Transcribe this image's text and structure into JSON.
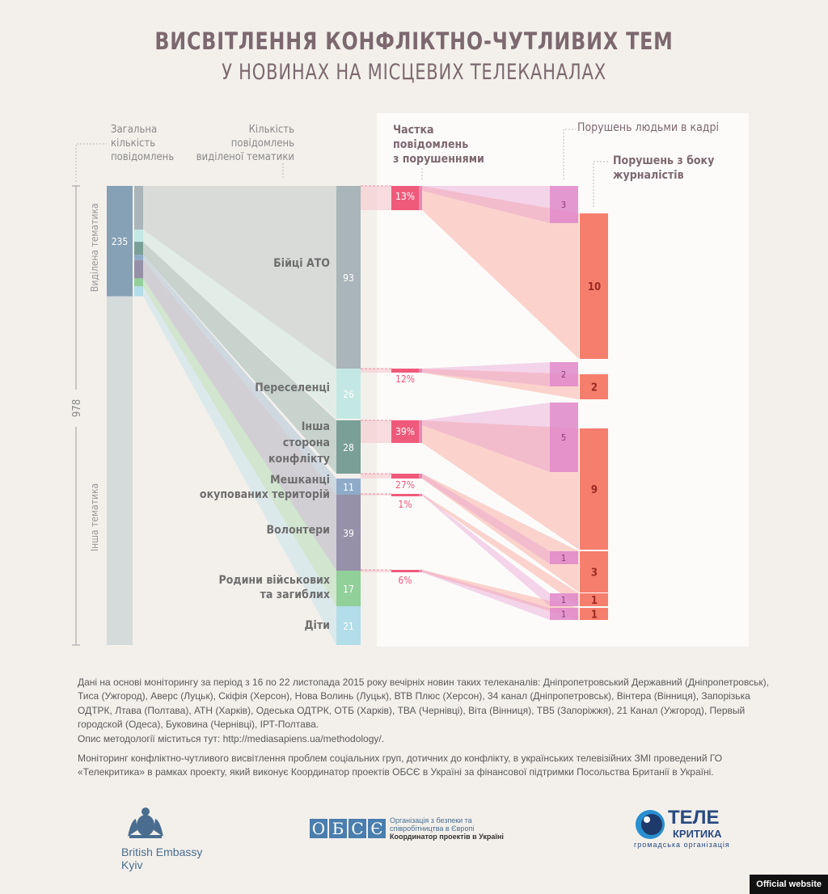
{
  "header": {
    "title": "ВИСВІТЛЕННЯ КОНФЛІКТНО-ЧУТЛИВИХ ТЕМ",
    "subtitle": "У НОВИНАХ НА МІСЦЕВИХ ТЕЛЕКАНАЛАХ"
  },
  "labels": {
    "total_col": [
      "Загальна",
      "кількість",
      "повідомлень"
    ],
    "topic_col": [
      "Кількість",
      "повідомлень",
      "виділеної тематики"
    ],
    "share_col": [
      "Частка",
      "повідомлень",
      "з порушеннями"
    ],
    "people_col": "Порушень людьми в кадрі",
    "journalist_col": [
      "Порушень з боку",
      "журналістів"
    ],
    "selected_topics": "Виділена тематика",
    "other_topics": "Інша тематика",
    "total": "978"
  },
  "chart_data": {
    "type": "sankey",
    "title": "Висвітлення конфліктно-чутливих тем у новинах на місцевих телеканалах",
    "total_messages": 978,
    "selected_topic_messages": 235,
    "other_topic_messages": 743,
    "topics": [
      {
        "name": "Бійці АТО",
        "count": 93,
        "share_violations": "13%",
        "people_violations": 3,
        "journalist_violations": 10,
        "color": "#a9b5b8"
      },
      {
        "name": "Переселенці",
        "count": 26,
        "share_violations": "12%",
        "people_violations": 2,
        "journalist_violations": 2,
        "color": "#c3e8e3"
      },
      {
        "name": "Інша сторона конфлікту",
        "count": 28,
        "share_violations": "39%",
        "people_violations": 5,
        "journalist_violations": 9,
        "color": "#7a9f97"
      },
      {
        "name": "Мешканці окупованих територій",
        "count": 11,
        "share_violations": "27%",
        "people_violations": 1,
        "journalist_violations": 3,
        "color": "#8eabc9"
      },
      {
        "name": "Волонтери",
        "count": 39,
        "share_violations": "1%",
        "people_violations": 1,
        "journalist_violations": 1,
        "color": "#9691a8"
      },
      {
        "name": "Родини військових та загиблих",
        "count": 17,
        "share_violations": "6%",
        "people_violations": 1,
        "journalist_violations": 1,
        "color": "#92d09a"
      },
      {
        "name": "Діти",
        "count": 21,
        "share_violations": "",
        "people_violations": 0,
        "journalist_violations": 0,
        "color": "#b3dde8"
      }
    ]
  },
  "notes": {
    "p1": "Дані на основі моніторингу за період з 16 по 22 листопада 2015 року вечірніх новин таких телеканалів: Дніпропетровський Державний (Дніпропетровськ), Тиса (Ужгород), Аверс (Луцьк), Скіфія (Херсон), Нова Волинь (Луцьк), ВТВ Плюс (Херсон), 34 канал (Дніпропетровськ), Вінтера (Вінниця), Запорізька ОДТРК, Лтава (Полтава), АТН (Харків), Одеська ОДТРК, ОТБ (Харків), ТВА (Чернівці), Віта (Вінниця), ТВ5 (Запоріжжя), 21 Канал (Ужгород), Первый городской (Одеса), Буковина (Чернівці), ІРТ-Полтава.",
    "p2": "Опис методології міститься тут: http://mediasapiens.ua/methodology/.",
    "p3": "Моніторинг конфліктно-чутливого висвітлення проблем соціальних груп, дотичних до конфлікту, в українських телевізійних ЗМІ проведений ГО «Телекритика» в рамках проекту, який виконує Координатор проектів ОБСЄ в Україні за фінансової підтримки Посольства Британії в Україні."
  },
  "logos": {
    "embassy": [
      "British Embassy",
      "Kyiv"
    ],
    "osce_mark": "ОБСЄ",
    "osce_text": [
      "Організація з безпеки та",
      "співробітництва в Європі",
      "Координатор проектів в Україні"
    ],
    "tele": [
      "ТЕЛЕ",
      "КРИТИКА",
      "громадська організація"
    ]
  },
  "badge": "Official website"
}
